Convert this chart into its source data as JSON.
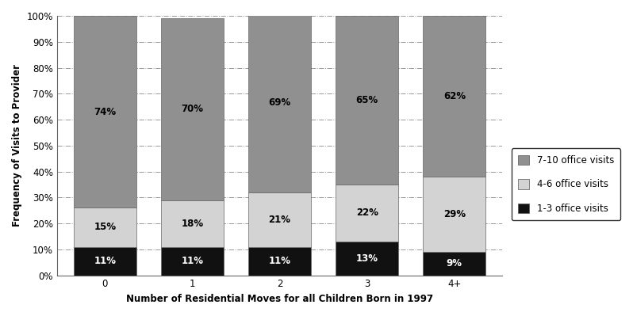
{
  "categories": [
    "0",
    "1",
    "2",
    "3",
    "4+"
  ],
  "series": {
    "1-3 office visits": [
      11,
      11,
      11,
      13,
      9
    ],
    "4-6 office visits": [
      15,
      18,
      21,
      22,
      29
    ],
    "7-10 office visits": [
      74,
      70,
      69,
      65,
      62
    ]
  },
  "colors": {
    "1-3 office visits": "#111111",
    "4-6 office visits": "#d3d3d3",
    "7-10 office visits": "#909090"
  },
  "xlabel": "Number of Residential Moves for all Children Born in 1997",
  "ylabel": "Frequency of Visits to Provider",
  "ylim": [
    0,
    100
  ],
  "yticks": [
    0,
    10,
    20,
    30,
    40,
    50,
    60,
    70,
    80,
    90,
    100
  ],
  "ytick_labels": [
    "0%",
    "10%",
    "20%",
    "30%",
    "40%",
    "50%",
    "60%",
    "70%",
    "80%",
    "90%",
    "100%"
  ],
  "bar_width": 0.72,
  "background_color": "#ffffff",
  "grid_color": "#999999",
  "legend_order": [
    "7-10 office visits",
    "4-6 office visits",
    "1-3 office visits"
  ],
  "label_fontsize": 8.5,
  "axis_fontsize": 8.5,
  "legend_fontsize": 8.5,
  "tick_fontsize": 8.5
}
